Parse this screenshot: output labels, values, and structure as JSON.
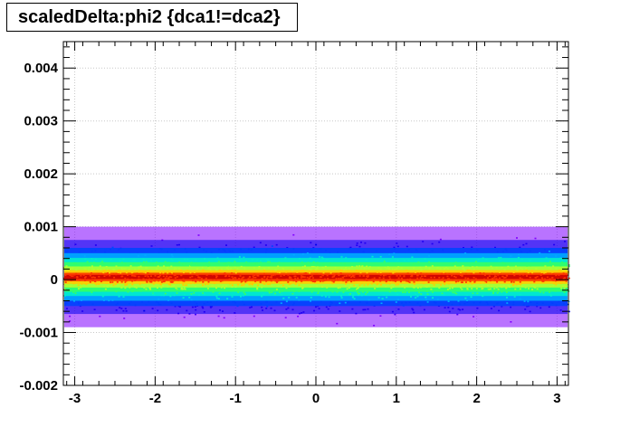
{
  "chart_data": {
    "type": "heatmap",
    "title": "scaledDelta:phi2 {dca1!=dca2}",
    "xlabel": "",
    "ylabel": "",
    "xlim": [
      -3.1416,
      3.1416
    ],
    "ylim": [
      -0.002,
      0.0045
    ],
    "x_ticks": [
      -3,
      -2,
      -1,
      0,
      1,
      2,
      3
    ],
    "x_tick_labels": [
      "-3",
      "-2",
      "-1",
      "0",
      "1",
      "2",
      "3"
    ],
    "y_ticks": [
      -0.002,
      -0.001,
      0,
      0.001,
      0.002,
      0.003,
      0.004
    ],
    "y_tick_labels": [
      "-0.002",
      "-0.001",
      "0",
      "0.001",
      "0.002",
      "0.003",
      "0.004"
    ],
    "grid": true,
    "band_center_y": 5e-05,
    "band_profile": [
      {
        "dy": 0.0,
        "color": "#cc0000"
      },
      {
        "dy": 8e-05,
        "color": "#ff3300"
      },
      {
        "dy": 0.00013,
        "color": "#ffcc00"
      },
      {
        "dy": 0.0002,
        "color": "#b0ff30"
      },
      {
        "dy": 0.00028,
        "color": "#33ff66"
      },
      {
        "dy": 0.00036,
        "color": "#00eecc"
      },
      {
        "dy": 0.00045,
        "color": "#00aaff"
      },
      {
        "dy": 0.00055,
        "color": "#0044ff"
      },
      {
        "dy": 0.0007,
        "color": "#0000ee"
      },
      {
        "dy": 0.00095,
        "color": "#7f00ff"
      }
    ],
    "colors": {
      "core": "#cc0000",
      "mid": "#ffcc00",
      "outer": "#00aaff",
      "edge": "#7f00ff"
    }
  }
}
